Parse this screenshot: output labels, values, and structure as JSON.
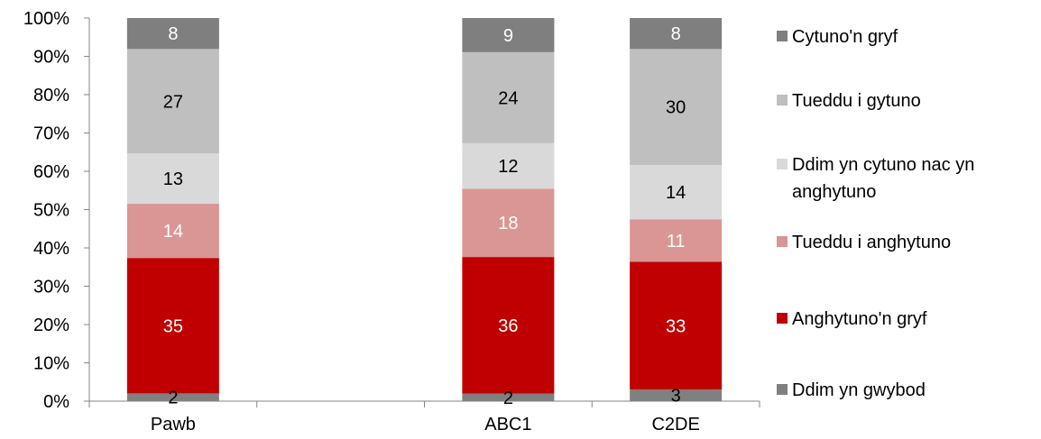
{
  "chart_data": {
    "type": "bar",
    "stacked": true,
    "normalized": true,
    "categories": [
      "Pawb",
      "",
      "ABC1",
      "C2DE"
    ],
    "series": [
      {
        "name": "Ddim yn gwybod",
        "color": "#808080",
        "label_color": "#000000",
        "values": [
          2,
          null,
          2,
          3
        ]
      },
      {
        "name": "Anghytuno'n gryf",
        "color": "#c00000",
        "label_color": "#ffffff",
        "values": [
          35,
          null,
          36,
          33
        ]
      },
      {
        "name": "Tueddu i anghytuno",
        "color": "#d99694",
        "label_color": "#ffffff",
        "values": [
          14,
          null,
          18,
          11
        ]
      },
      {
        "name": "Ddim yn cytuno nac yn anghytuno",
        "color": "#d9d9d9",
        "label_color": "#000000",
        "values": [
          13,
          null,
          12,
          14
        ]
      },
      {
        "name": "Tueddu i gytuno",
        "color": "#bfbfbf",
        "label_color": "#000000",
        "values": [
          27,
          null,
          24,
          30
        ]
      },
      {
        "name": "Cytuno'n gryf",
        "color": "#7f7f7f",
        "label_color": "#ffffff",
        "values": [
          8,
          null,
          9,
          8
        ]
      }
    ],
    "y_ticks": [
      "0%",
      "10%",
      "20%",
      "30%",
      "40%",
      "50%",
      "60%",
      "70%",
      "80%",
      "90%",
      "100%"
    ],
    "ylim": [
      0,
      100
    ],
    "legend_position": "right",
    "grid": false
  }
}
